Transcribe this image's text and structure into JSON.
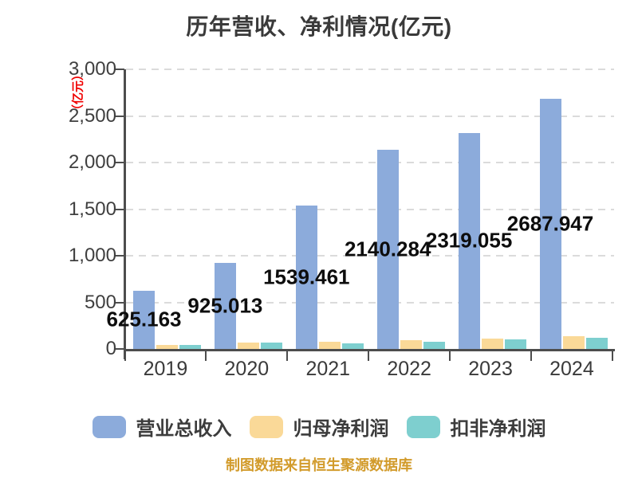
{
  "title": "历年营收、净利情况(亿元)",
  "y_axis": {
    "unit_label": "（亿元）",
    "tick_labels": [
      "0",
      "500",
      "1,000",
      "1,500",
      "2,000",
      "2,500",
      "3,000"
    ],
    "tick_values": [
      0,
      500,
      1000,
      1500,
      2000,
      2500,
      3000
    ]
  },
  "x_axis": {
    "tick_labels": [
      "2019",
      "2020",
      "2021",
      "2022",
      "2023",
      "2024"
    ]
  },
  "chart_data": {
    "type": "bar",
    "title": "历年营收、净利情况(亿元)",
    "categories": [
      "2019",
      "2020",
      "2021",
      "2022",
      "2023",
      "2024"
    ],
    "series": [
      {
        "name": "营业总收入",
        "color": "#8cabdb",
        "values": [
          625.163,
          925.013,
          1539.461,
          2140.284,
          2319.055,
          2687.947
        ],
        "value_labels": [
          "625.163",
          "925.013",
          "1539.461",
          "2140.284",
          "2319.055",
          "2687.947"
        ]
      },
      {
        "name": "归母净利润",
        "color": "#fad998",
        "values": [
          47,
          72,
          73,
          93,
          110,
          134
        ],
        "value_labels": []
      },
      {
        "name": "扣非净利润",
        "color": "#7ecfcf",
        "values": [
          45,
          65,
          62,
          78,
          100,
          116
        ],
        "value_labels": []
      }
    ],
    "ylim": [
      0,
      3000
    ],
    "ytick_step": 500,
    "grid": "horizontal-dashed",
    "legend_position": "bottom"
  },
  "legend": {
    "items": [
      {
        "label": "营业总收入",
        "color": "#8cabdb"
      },
      {
        "label": "归母净利润",
        "color": "#fad998"
      },
      {
        "label": "扣非净利润",
        "color": "#7ecfcf"
      }
    ]
  },
  "footer": {
    "text": "制图数据来自恒生聚源数据库"
  },
  "colors": {
    "background": "#ffffff",
    "axis": "#4d4d4d",
    "grid": "#dbdbdb",
    "title_text": "#3a3a3a",
    "tick_text": "#3f3f3f",
    "data_label_text": "#0d0d0d",
    "unit_label_text": "#f00000",
    "footer_text": "#d29b2b"
  }
}
